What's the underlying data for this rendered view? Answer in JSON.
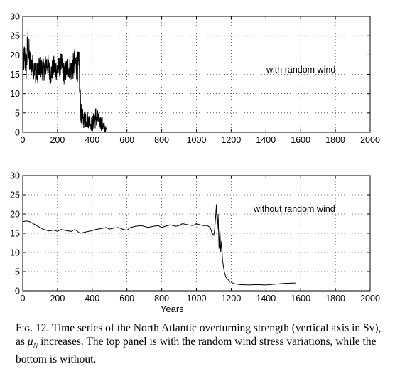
{
  "chart_data": [
    {
      "type": "line",
      "title": "",
      "annotation": "with random wind",
      "xlabel": "",
      "ylabel": "",
      "xlim": [
        0,
        2000
      ],
      "ylim": [
        0,
        30
      ],
      "xticks": [
        0,
        200,
        400,
        600,
        800,
        1000,
        1200,
        1400,
        1600,
        1800,
        2000
      ],
      "yticks": [
        0,
        5,
        10,
        15,
        20,
        25,
        30
      ],
      "grid": true,
      "series": [
        {
          "style": "noisy",
          "x": [
            0,
            10,
            20,
            30,
            40,
            60,
            80,
            100,
            120,
            140,
            160,
            180,
            200,
            220,
            240,
            260,
            280,
            300,
            315,
            325,
            330,
            335,
            340,
            350,
            360,
            380,
            400,
            420,
            440,
            460,
            470,
            480
          ],
          "y": [
            16,
            20,
            17,
            23,
            18,
            17,
            15,
            17,
            16,
            18,
            15,
            17,
            16,
            18,
            15,
            17,
            16,
            18,
            17,
            16,
            10,
            5,
            4,
            3,
            4,
            3,
            2,
            4,
            3,
            2,
            1,
            0.5
          ],
          "noise": [
            3,
            4,
            4,
            5,
            4,
            3,
            3,
            3,
            3,
            3,
            3,
            3,
            3,
            3,
            3,
            3,
            3,
            4,
            4,
            5,
            4,
            3,
            3,
            2,
            3,
            2,
            2,
            3,
            2,
            2,
            1.5,
            1
          ]
        }
      ]
    },
    {
      "type": "line",
      "title": "",
      "annotation": "without random wind",
      "xlabel": "Years",
      "ylabel": "",
      "xlim": [
        0,
        2000
      ],
      "ylim": [
        0,
        30
      ],
      "xticks": [
        0,
        200,
        400,
        600,
        800,
        1000,
        1200,
        1400,
        1600,
        1800,
        2000
      ],
      "yticks": [
        0,
        5,
        10,
        15,
        20,
        25,
        30
      ],
      "grid": true,
      "series": [
        {
          "style": "smooth",
          "x": [
            0,
            20,
            40,
            60,
            80,
            100,
            120,
            150,
            180,
            200,
            220,
            250,
            280,
            300,
            330,
            350,
            380,
            400,
            420,
            450,
            480,
            500,
            520,
            550,
            580,
            600,
            620,
            650,
            680,
            700,
            720,
            750,
            780,
            800,
            820,
            850,
            880,
            900,
            920,
            950,
            980,
            1000,
            1020,
            1040,
            1060,
            1070,
            1080,
            1090,
            1100,
            1105,
            1110,
            1115,
            1120,
            1125,
            1130,
            1135,
            1140,
            1145,
            1150,
            1160,
            1170,
            1180,
            1190,
            1200,
            1220,
            1250,
            1300,
            1350,
            1400,
            1450,
            1500,
            1550,
            1570
          ],
          "y": [
            18,
            18.2,
            18,
            17.5,
            17,
            16.5,
            16,
            15.6,
            15.8,
            15.5,
            16,
            15.7,
            15.5,
            16,
            15,
            15.2,
            15.5,
            15.7,
            16,
            16.2,
            16.5,
            16.1,
            16.3,
            16.5,
            16,
            15.8,
            16.5,
            16.8,
            17,
            16.8,
            16.5,
            16.8,
            17,
            16.5,
            16.8,
            17.2,
            16.8,
            17,
            17.5,
            17.2,
            17,
            17.5,
            17.2,
            17,
            17,
            16.8,
            16.5,
            15,
            14.5,
            16,
            19,
            22.5,
            16,
            20,
            11,
            16,
            10,
            13,
            8,
            5,
            3.5,
            3,
            2.5,
            2.2,
            1.8,
            1.6,
            1.5,
            1.6,
            1.5,
            1.7,
            1.9,
            2,
            2
          ]
        }
      ]
    }
  ],
  "caption": {
    "fig_label": "Fig. 12.",
    "text": " Time series of the North Atlantic overturning strength (vertical axis in Sv), as ",
    "symbol": "μ",
    "symbol_sub": "N",
    "text_end": " increases. The top panel is with the random wind stress variations, while the bottom is without."
  }
}
